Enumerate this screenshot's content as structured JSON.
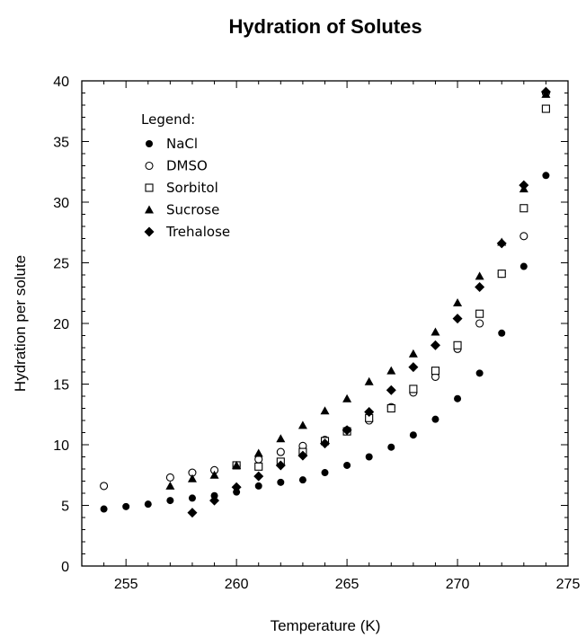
{
  "chart_data": {
    "type": "scatter",
    "title": "Hydration of Solutes",
    "xlabel": "Temperature (K)",
    "ylabel": "Hydration per solute",
    "xlim": [
      253,
      275
    ],
    "ylim": [
      0,
      40
    ],
    "xticks": [
      255,
      260,
      265,
      270,
      275
    ],
    "yticks": [
      0,
      5,
      10,
      15,
      20,
      25,
      30,
      35,
      40
    ],
    "grid": false,
    "legend": {
      "title": "Legend:",
      "placement": "top-left"
    },
    "series": [
      {
        "name": "NaCl",
        "marker": "filled-circle",
        "x": [
          254,
          255,
          256,
          257,
          258,
          259,
          260,
          261,
          262,
          263,
          264,
          265,
          266,
          267,
          268,
          269,
          270,
          271,
          272,
          273,
          274
        ],
        "y": [
          4.7,
          4.9,
          5.1,
          5.4,
          5.6,
          5.8,
          6.1,
          6.6,
          6.9,
          7.1,
          7.7,
          8.3,
          9.0,
          9.8,
          10.8,
          12.1,
          13.8,
          15.9,
          19.2,
          24.7,
          32.2
        ]
      },
      {
        "name": "DMSO",
        "marker": "open-circle",
        "x": [
          254,
          257,
          258,
          259,
          260,
          261,
          262,
          263,
          264,
          265,
          266,
          267,
          268,
          269,
          270,
          271,
          272,
          273,
          274
        ],
        "y": [
          6.6,
          7.3,
          7.7,
          7.9,
          8.3,
          8.8,
          9.4,
          9.9,
          10.4,
          11.2,
          12.0,
          13.1,
          14.3,
          15.6,
          17.9,
          20.0,
          24.1,
          27.2,
          39.0
        ]
      },
      {
        "name": "Sorbitol",
        "marker": "open-square",
        "x": [
          260,
          261,
          262,
          263,
          264,
          265,
          266,
          267,
          268,
          269,
          270,
          271,
          272,
          273,
          274
        ],
        "y": [
          8.3,
          8.2,
          8.6,
          9.4,
          10.3,
          11.1,
          12.2,
          13.0,
          14.6,
          16.1,
          18.2,
          20.8,
          24.1,
          29.5,
          37.7
        ]
      },
      {
        "name": "Sucrose",
        "marker": "filled-triangle",
        "x": [
          257,
          258,
          259,
          260,
          261,
          262,
          263,
          264,
          265,
          266,
          267,
          268,
          269,
          270,
          271,
          272,
          273,
          274
        ],
        "y": [
          6.6,
          7.2,
          7.5,
          8.3,
          9.3,
          10.5,
          11.6,
          12.8,
          13.8,
          15.2,
          16.1,
          17.5,
          19.3,
          21.7,
          23.9,
          26.7,
          31.1,
          38.9
        ]
      },
      {
        "name": "Trehalose",
        "marker": "filled-diamond",
        "x": [
          258,
          259,
          260,
          261,
          262,
          263,
          264,
          265,
          266,
          267,
          268,
          269,
          270,
          271,
          272,
          273,
          274
        ],
        "y": [
          4.4,
          5.4,
          6.5,
          7.4,
          8.3,
          9.1,
          10.1,
          11.2,
          12.7,
          14.5,
          16.4,
          18.2,
          20.4,
          23.0,
          26.6,
          31.4,
          39.1
        ]
      }
    ]
  }
}
